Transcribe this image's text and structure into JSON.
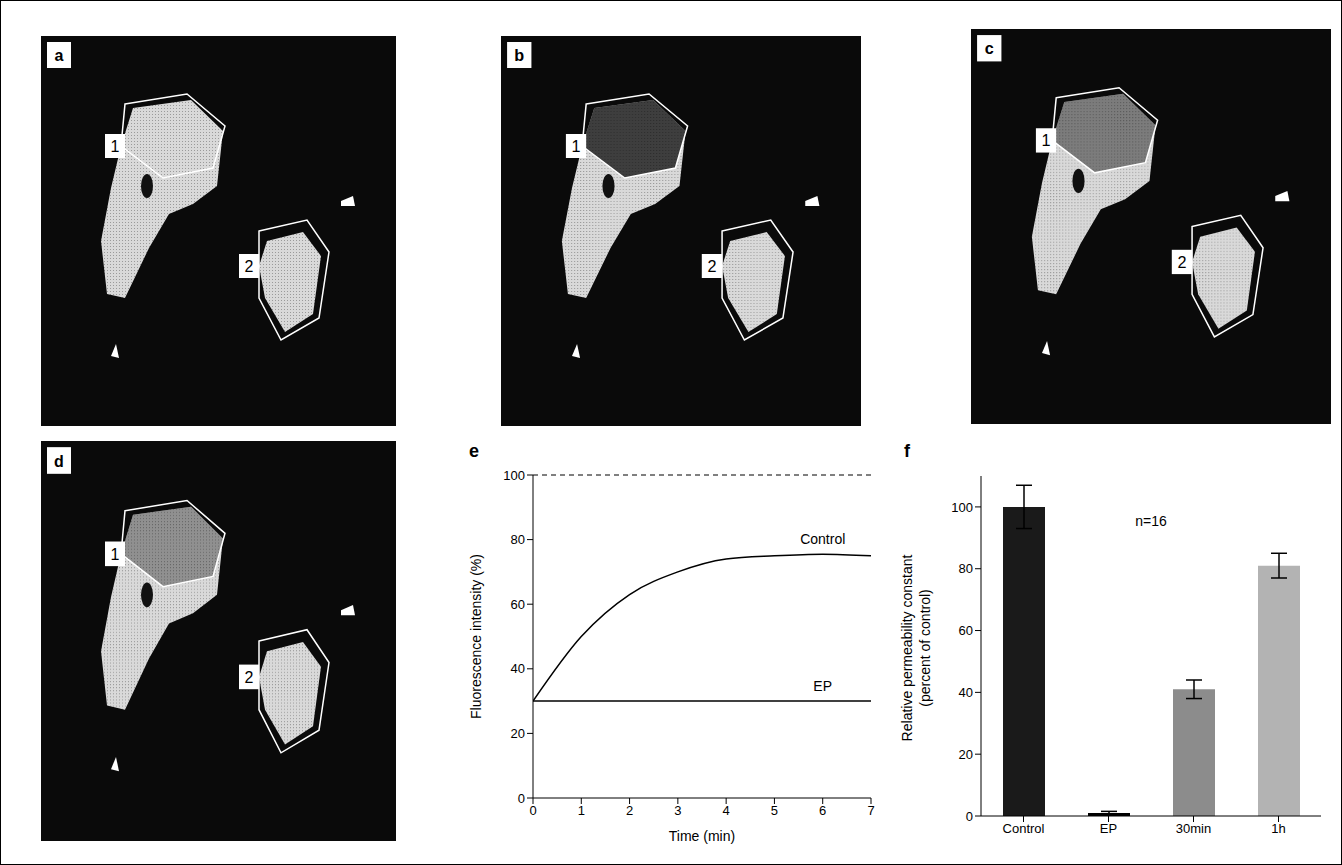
{
  "image_panels": [
    {
      "letter": "a",
      "regions": [
        "1",
        "2"
      ]
    },
    {
      "letter": "b",
      "regions": [
        "1",
        "2"
      ]
    },
    {
      "letter": "c",
      "regions": [
        "1",
        "2"
      ]
    },
    {
      "letter": "d",
      "regions": [
        "1",
        "2"
      ]
    }
  ],
  "chart_data": [
    {
      "panel": "e",
      "type": "line",
      "x": [
        0,
        1,
        2,
        3,
        4,
        5,
        6,
        7
      ],
      "xlim": [
        0,
        7
      ],
      "xticks": [
        0,
        1,
        2,
        3,
        4,
        5,
        6,
        7
      ],
      "ylim": [
        0,
        100
      ],
      "yticks": [
        0,
        20,
        40,
        60,
        80,
        100
      ],
      "xlabel": "Time (min)",
      "ylabel": "Fluorescence intensity (%)",
      "series": [
        {
          "name": "Control",
          "color": "#000000",
          "values": [
            30,
            50,
            63,
            70,
            74,
            75,
            75.5,
            75
          ]
        },
        {
          "name": "EP",
          "color": "#000000",
          "values": [
            30,
            30,
            30,
            30,
            30,
            30,
            30,
            30
          ]
        }
      ],
      "reference_lines": [
        {
          "value": 100,
          "line_style": "dashed"
        }
      ]
    },
    {
      "panel": "f",
      "type": "bar",
      "categories": [
        "Control",
        "EP",
        "30min",
        "1h"
      ],
      "values": [
        100,
        1,
        41,
        81
      ],
      "errors": [
        7,
        0.5,
        3,
        4
      ],
      "colors": [
        "#1a1a1a",
        "#000000",
        "#8c8c8c",
        "#b3b3b3"
      ],
      "ylim": [
        0,
        110
      ],
      "yticks": [
        0,
        20,
        40,
        60,
        80,
        100
      ],
      "ylabel": "Relative permeability constant (percent of control)",
      "annotations": [
        "n=16"
      ]
    }
  ]
}
